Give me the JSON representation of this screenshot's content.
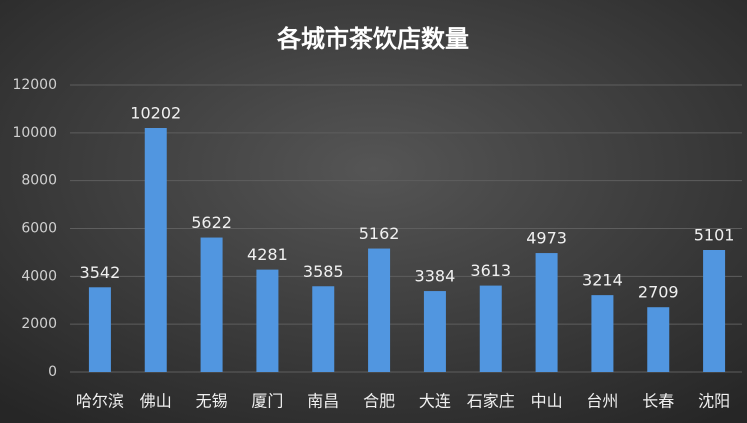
{
  "chart_data": {
    "type": "bar",
    "title": "各城市茶饮店数量",
    "categories": [
      "哈尔滨",
      "佛山",
      "无锡",
      "厦门",
      "南昌",
      "合肥",
      "大连",
      "石家庄",
      "中山",
      "台州",
      "长春",
      "沈阳"
    ],
    "values": [
      3542,
      10202,
      5622,
      4281,
      3585,
      5162,
      3384,
      3613,
      4973,
      3214,
      2709,
      5101
    ],
    "color": "#5196e0",
    "ylim": [
      0,
      12000
    ],
    "yticks": [
      0,
      2000,
      4000,
      6000,
      8000,
      10000,
      12000
    ],
    "grid": true
  }
}
